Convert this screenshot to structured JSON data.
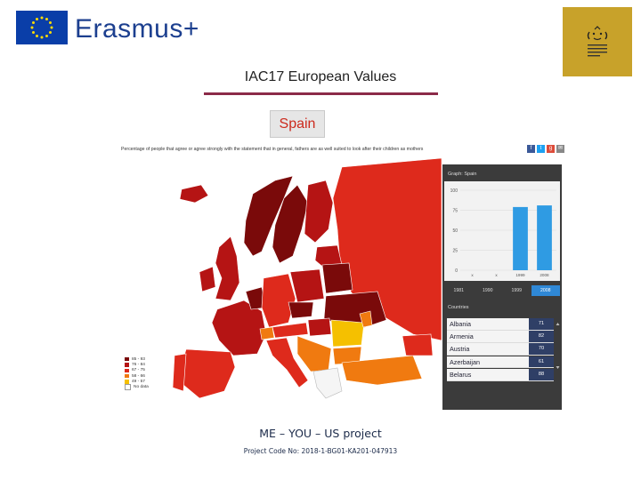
{
  "header": {
    "brand_text": "Erasmus+",
    "eu_flag_icon": "eu-flag-icon",
    "school_logo_icon": "school-crest-icon"
  },
  "slide": {
    "title": "IAC17 European Values",
    "country": "Spain"
  },
  "screenshot": {
    "caption": "Percentage of people that agree or agree strongly with the statement that in general, fathers are as well suited to look after their children as mothers",
    "share_icons": [
      "facebook-icon",
      "twitter-icon",
      "google-plus-icon",
      "email-icon"
    ],
    "legend": [
      {
        "label": "85 - 93",
        "color": "#7a0a0a"
      },
      {
        "label": "76 - 84",
        "color": "#b51414"
      },
      {
        "label": "67 - 75",
        "color": "#de2a1c"
      },
      {
        "label": "58 - 66",
        "color": "#f07a10"
      },
      {
        "label": "49 - 57",
        "color": "#f5c000"
      },
      {
        "label": "No data",
        "color": "#ffffff"
      }
    ],
    "chart_header": "Graph: Spain",
    "year_tabs": [
      "1981",
      "1990",
      "1999",
      "2008"
    ],
    "active_year": "2008",
    "countries_header": "Countries",
    "countries": [
      {
        "name": "Albania",
        "value": "71"
      },
      {
        "name": "Armenia",
        "value": "82"
      },
      {
        "name": "Austria",
        "value": "70"
      },
      {
        "name": "Azerbaijan",
        "value": "61"
      },
      {
        "name": "Belarus",
        "value": "88"
      }
    ]
  },
  "chart_data": {
    "type": "bar",
    "title": "Graph: Spain",
    "categories": [
      "1981",
      "1990",
      "1999",
      "2008"
    ],
    "x_tick_labels": [
      "x",
      "x",
      "1999",
      "2008"
    ],
    "values": [
      0,
      0,
      79,
      81
    ],
    "ylim": [
      0,
      100
    ],
    "y_ticks": [
      0,
      25,
      50,
      75,
      100
    ],
    "y_tick_labels": [
      "0",
      "25",
      "50",
      "75",
      "100"
    ],
    "bar_color": "#2f9be3",
    "grid": true
  },
  "footer": {
    "project_title": "ME – YOU – US project",
    "project_code": "Project Code No: 2018-1-BG01-KA201-047913"
  }
}
